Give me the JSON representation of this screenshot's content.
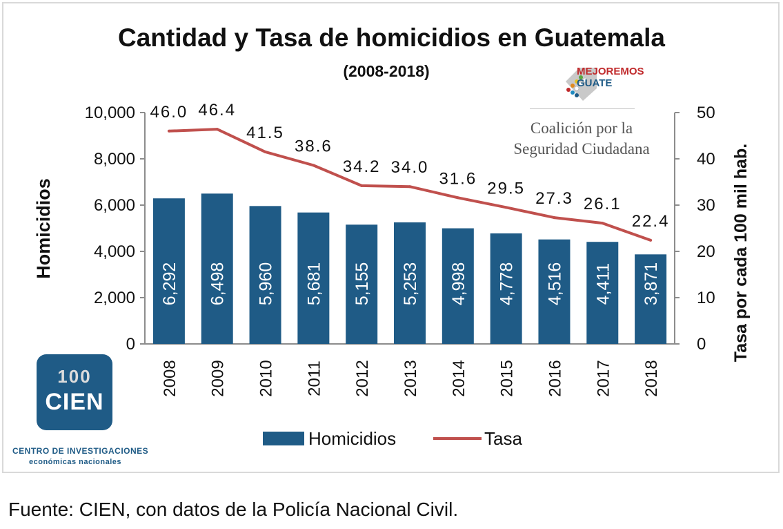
{
  "chart_data": {
    "type": "bar+line",
    "title": "Cantidad y Tasa de homicidios en Guatemala",
    "subtitle": "(2008-2018)",
    "categories": [
      "2008",
      "2009",
      "2010",
      "2011",
      "2012",
      "2013",
      "2014",
      "2015",
      "2016",
      "2017",
      "2018"
    ],
    "series": [
      {
        "name": "Homicidios",
        "type": "bar",
        "axis": "left",
        "color": "#1f5b86",
        "values": [
          6292,
          6498,
          5960,
          5681,
          5155,
          5253,
          4998,
          4778,
          4516,
          4411,
          3871
        ],
        "labels": [
          "6,292",
          "6,498",
          "5,960",
          "5,681",
          "5,155",
          "5,253",
          "4,998",
          "4,778",
          "4,516",
          "4,411",
          "3,871"
        ]
      },
      {
        "name": "Tasa",
        "type": "line",
        "axis": "right",
        "color": "#c0504d",
        "values": [
          46.0,
          46.4,
          41.5,
          38.6,
          34.2,
          34.0,
          31.6,
          29.5,
          27.3,
          26.1,
          22.4
        ],
        "labels": [
          "46.0",
          "46.4",
          "41.5",
          "38.6",
          "34.2",
          "34.0",
          "31.6",
          "29.5",
          "27.3",
          "26.1",
          "22.4"
        ]
      }
    ],
    "ylabel": "Homicidios",
    "ylabel_right": "Tasa por cada 100 mil hab.",
    "ylim": [
      0,
      10000
    ],
    "ylim_right": [
      0,
      50
    ],
    "yticks": [
      "0",
      "2,000",
      "4,000",
      "6,000",
      "8,000",
      "10,000"
    ],
    "yticks_right": [
      "0",
      "10",
      "20",
      "30",
      "40",
      "50"
    ],
    "legend": [
      "Homicidios",
      "Tasa"
    ],
    "legend_position": "bottom",
    "grid": false
  },
  "source": "Fuente: CIEN, con datos de la Policía Nacional Civil.",
  "logos": {
    "mejoremos_line1": "MEJOREMOS",
    "mejoremos_line2": "GUATE",
    "coalicion_line1": "Coalición por la",
    "coalicion_line2": "Seguridad Ciudadana",
    "cien_number": "100",
    "cien_word": "CIEN",
    "cien_full_line1": "CENTRO DE INVESTIGACIONES",
    "cien_full_line2": "económicas nacionales"
  }
}
